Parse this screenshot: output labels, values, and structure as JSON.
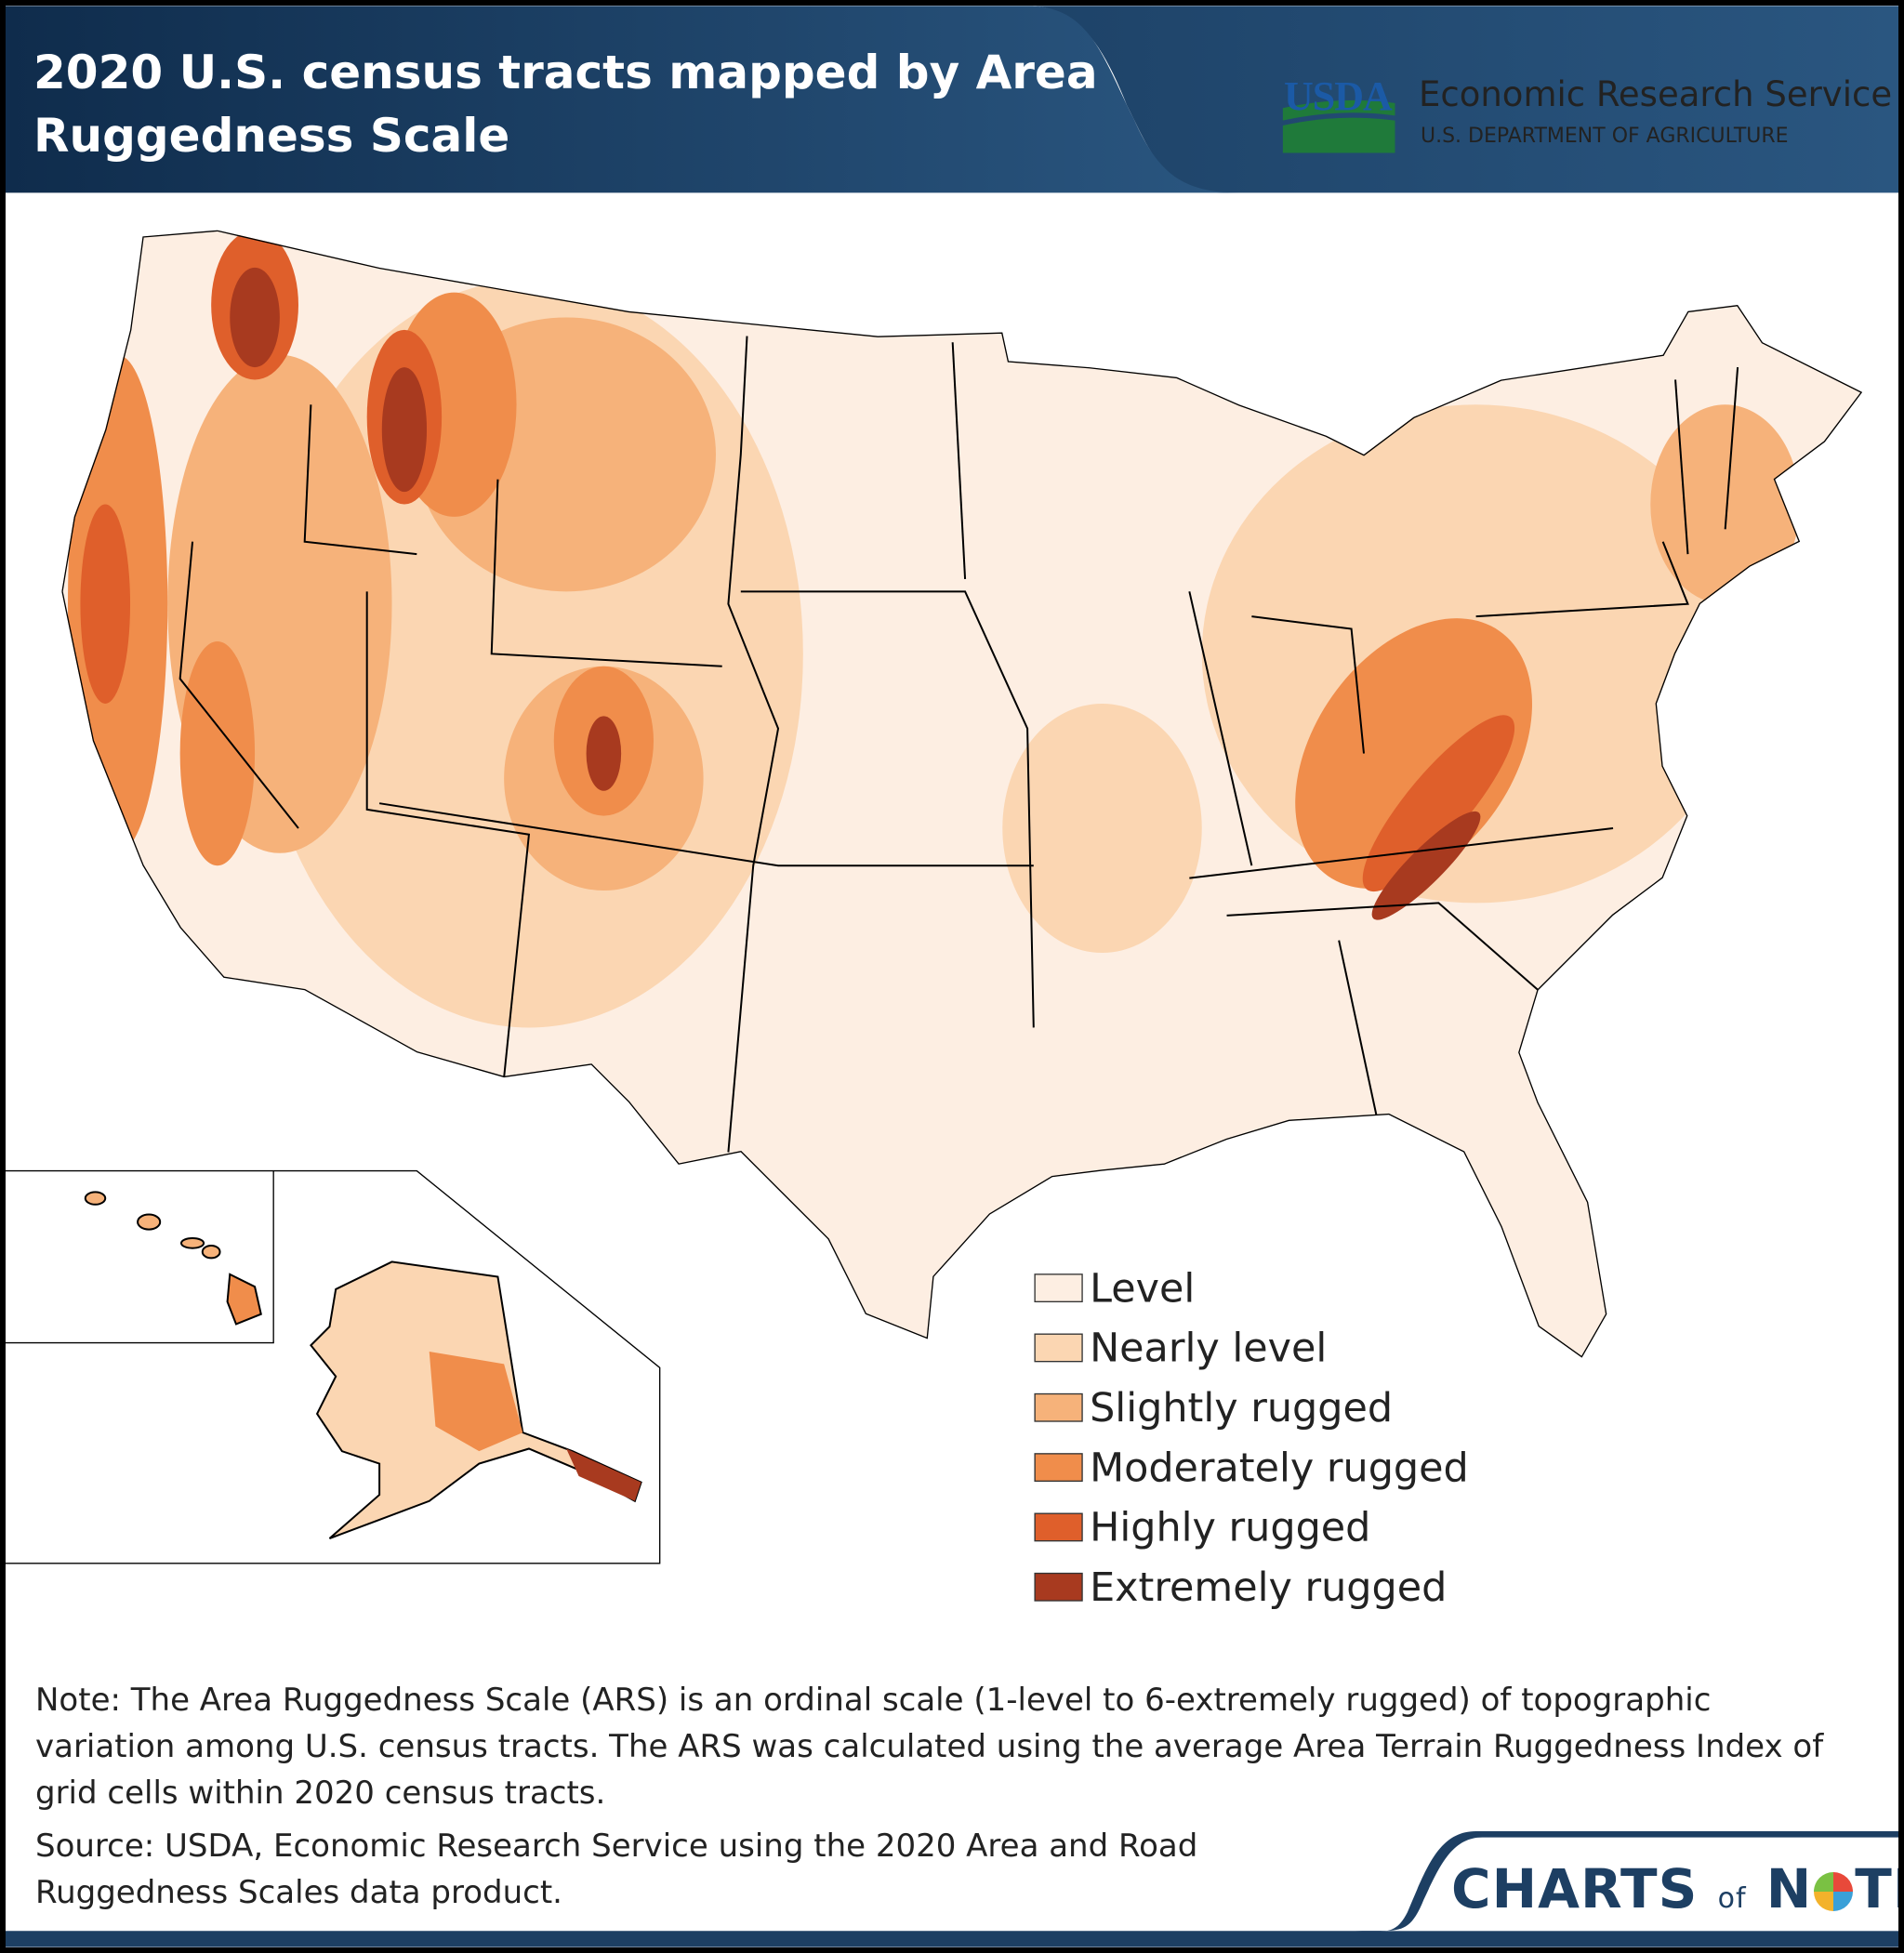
{
  "header": {
    "title": "2020 U.S. census tracts mapped by Area Ruggedness Scale",
    "agency": "USDA",
    "service": "Economic Research Service",
    "department": "U.S. DEPARTMENT OF AGRICULTURE"
  },
  "legend": {
    "items": [
      {
        "label": "Level",
        "color": "#fdeee2"
      },
      {
        "label": "Nearly level",
        "color": "#fbd6b2"
      },
      {
        "label": "Slightly rugged",
        "color": "#f6b27a"
      },
      {
        "label": "Moderately rugged",
        "color": "#f08d4b"
      },
      {
        "label": "Highly rugged",
        "color": "#df5f2b"
      },
      {
        "label": "Extremely rugged",
        "color": "#a83a1f"
      }
    ]
  },
  "footer": {
    "note": "Note: The Area Ruggedness Scale (ARS) is an ordinal scale (1-level to 6-extremely rugged) of topographic variation among U.S. census tracts. The ARS was calculated using the average Area Terrain Ruggedness Index of grid cells within 2020 census tracts.",
    "source": "Source: USDA, Economic Research Service using the 2020 Area and Road Ruggedness Scales data product.",
    "brand": {
      "charts": "CHARTS",
      "of": "of",
      "n": "N",
      "te": "TE"
    }
  }
}
